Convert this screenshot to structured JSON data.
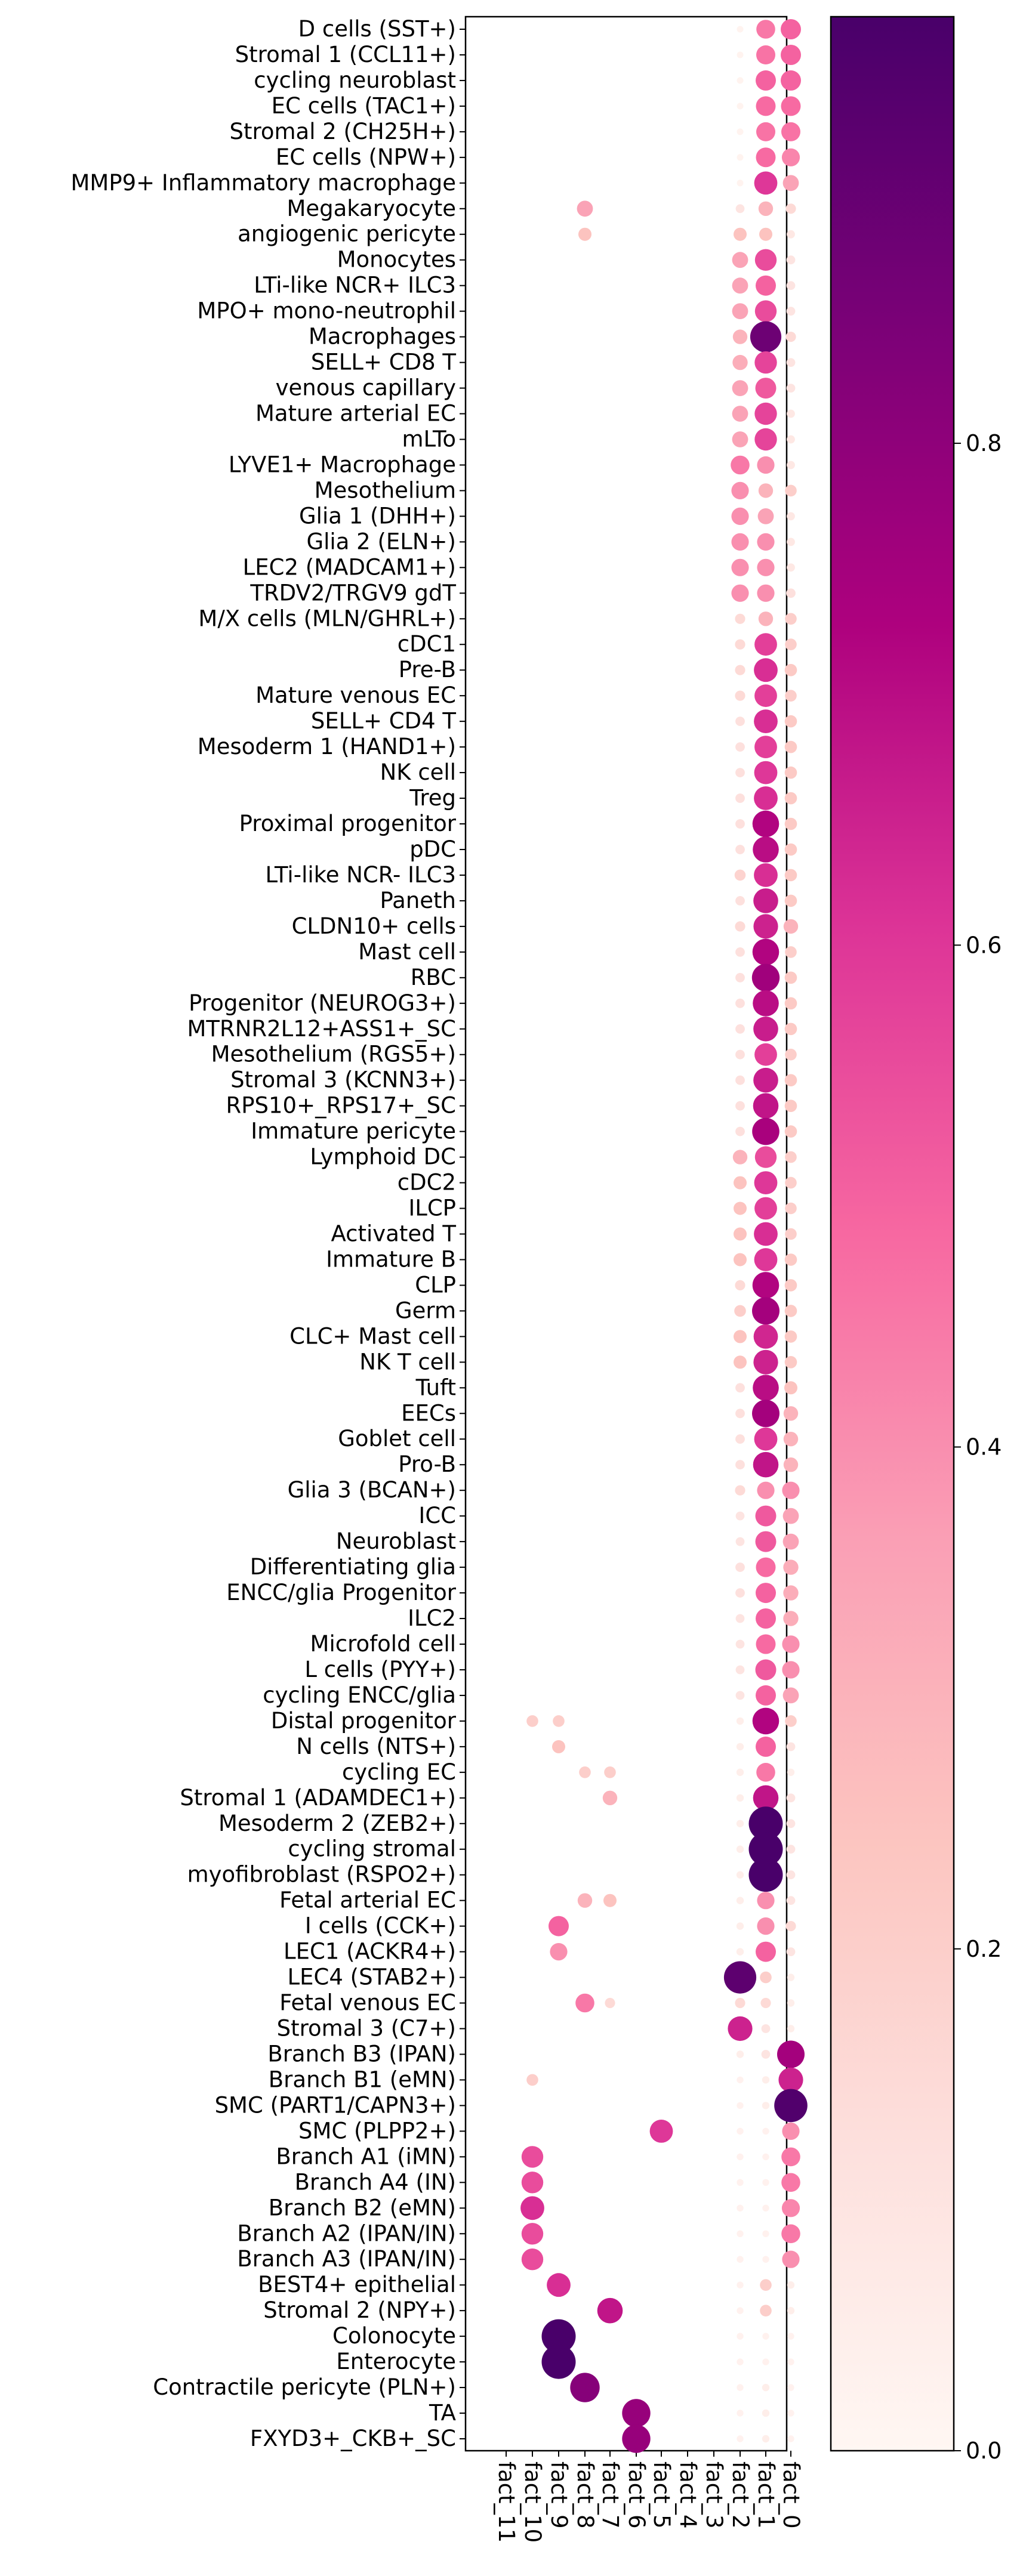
{
  "chart_data": {
    "type": "dotplot",
    "title": "",
    "xlabel": "",
    "ylabel": "",
    "columns": [
      "fact_11",
      "fact_10",
      "fact_9",
      "fact_8",
      "fact_7",
      "fact_6",
      "fact_5",
      "fact_4",
      "fact_3",
      "fact_2",
      "fact_1",
      "fact_0"
    ],
    "rows": [
      "D cells (SST+)",
      "Stromal 1 (CCL11+)",
      "cycling neuroblast",
      "EC cells (TAC1+)",
      "Stromal 2 (CH25H+)",
      "EC cells (NPW+)",
      "MMP9+ Inflammatory macrophage",
      "Megakaryocyte",
      "angiogenic pericyte",
      "Monocytes",
      "LTi-like NCR+ ILC3",
      "MPO+ mono-neutrophil",
      "Macrophages",
      "SELL+ CD8 T",
      "venous capillary",
      "Mature arterial EC",
      "mLTo",
      "LYVE1+ Macrophage",
      "Mesothelium",
      "Glia 1 (DHH+)",
      "Glia 2 (ELN+)",
      "LEC2 (MADCAM1+)",
      "TRDV2/TRGV9 gdT",
      "M/X cells (MLN/GHRL+)",
      "cDC1",
      "Pre-B",
      "Mature venous EC",
      "SELL+ CD4 T",
      "Mesoderm 1 (HAND1+)",
      "NK cell",
      "Treg",
      "Proximal progenitor",
      "pDC",
      "LTi-like NCR- ILC3",
      "Paneth",
      "CLDN10+ cells",
      "Mast cell",
      "RBC",
      "Progenitor (NEUROG3+)",
      "MTRNR2L12+ASS1+_SC",
      "Mesothelium (RGS5+)",
      "Stromal 3 (KCNN3+)",
      "RPS10+_RPS17+_SC",
      "Immature pericyte",
      "Lymphoid DC",
      "cDC2",
      "ILCP",
      "Activated T",
      "Immature B",
      "CLP",
      "Germ",
      "CLC+ Mast cell",
      "NK T cell",
      "Tuft",
      "EECs",
      "Goblet cell",
      "Pro-B",
      "Glia 3 (BCAN+)",
      "ICC",
      "Neuroblast",
      "Differentiating glia",
      "ENCC/glia Progenitor",
      "ILC2",
      "Microfold cell",
      "L cells (PYY+)",
      "cycling ENCC/glia",
      "Distal progenitor",
      "N cells (NTS+)",
      "cycling EC",
      "Stromal 1 (ADAMDEC1+)",
      "Mesoderm 2 (ZEB2+)",
      "cycling stromal",
      "myofibroblast (RSPO2+)",
      "Fetal arterial EC",
      "I cells (CCK+)",
      "LEC1 (ACKR4+)",
      "LEC4 (STAB2+)",
      "Fetal venous EC",
      "Stromal 3 (C7+)",
      "Branch B3 (IPAN)",
      "Branch B1 (eMN)",
      "SMC (PART1/CAPN3+)",
      "SMC (PLPP2+)",
      "Branch A1 (iMN)",
      "Branch A4 (IN)",
      "Branch B2 (eMN)",
      "Branch A2 (IPAN/IN)",
      "Branch A3 (IPAN/IN)",
      "BEST4+ epithelial",
      "Stromal 2 (NPY+)",
      "Colonocyte",
      "Enterocyte",
      "Contractile pericyte (PLN+)",
      "TA",
      "FXYD3+_CKB+_SC"
    ],
    "fact1_values": [
      0.45,
      0.46,
      0.5,
      0.48,
      0.46,
      0.48,
      0.6,
      0.3,
      0.25,
      0.55,
      0.5,
      0.55,
      0.88,
      0.57,
      0.52,
      0.57,
      0.57,
      0.4,
      0.3,
      0.35,
      0.4,
      0.4,
      0.4,
      0.3,
      0.58,
      0.62,
      0.58,
      0.62,
      0.58,
      0.6,
      0.62,
      0.72,
      0.7,
      0.62,
      0.66,
      0.65,
      0.72,
      0.76,
      0.7,
      0.66,
      0.58,
      0.66,
      0.68,
      0.74,
      0.55,
      0.6,
      0.58,
      0.62,
      0.6,
      0.72,
      0.75,
      0.64,
      0.65,
      0.7,
      0.75,
      0.6,
      0.68,
      0.4,
      0.52,
      0.52,
      0.48,
      0.5,
      0.5,
      0.48,
      0.52,
      0.5,
      0.72,
      0.5,
      0.45,
      0.68,
      0.98,
      0.98,
      0.98,
      0.4,
      0.4,
      0.5,
      0.2,
      0.15,
      0.1,
      0.1,
      0.05,
      0.05,
      0.03,
      0.03,
      0.03,
      0.03,
      0.03,
      0.03,
      0.2,
      0.2,
      0.03,
      0.03,
      0.05,
      0.05,
      0.05
    ],
    "fact0_values": [
      0.5,
      0.5,
      0.5,
      0.48,
      0.46,
      0.42,
      0.35,
      0.15,
      0.08,
      0.1,
      0.1,
      0.1,
      0.15,
      0.1,
      0.1,
      0.08,
      0.08,
      0.08,
      0.2,
      0.08,
      0.08,
      0.08,
      0.12,
      0.2,
      0.2,
      0.22,
      0.2,
      0.22,
      0.22,
      0.22,
      0.22,
      0.22,
      0.22,
      0.22,
      0.22,
      0.3,
      0.2,
      0.22,
      0.22,
      0.22,
      0.2,
      0.22,
      0.22,
      0.22,
      0.2,
      0.2,
      0.2,
      0.2,
      0.22,
      0.22,
      0.22,
      0.22,
      0.22,
      0.25,
      0.3,
      0.3,
      0.3,
      0.4,
      0.35,
      0.35,
      0.32,
      0.32,
      0.32,
      0.4,
      0.4,
      0.35,
      0.2,
      0.1,
      0.05,
      0.1,
      0.1,
      0.1,
      0.1,
      0.1,
      0.15,
      0.1,
      0.05,
      0.05,
      0.05,
      0.75,
      0.65,
      0.95,
      0.4,
      0.45,
      0.45,
      0.42,
      0.45,
      0.4,
      0.05,
      0.05,
      0.03,
      0.03,
      0.03,
      0.03,
      0.03
    ],
    "fact2_values": [
      0.02,
      0.02,
      0.02,
      0.02,
      0.02,
      0.02,
      0.02,
      0.1,
      0.25,
      0.35,
      0.35,
      0.35,
      0.3,
      0.32,
      0.35,
      0.35,
      0.35,
      0.45,
      0.4,
      0.4,
      0.4,
      0.4,
      0.4,
      0.15,
      0.15,
      0.15,
      0.15,
      0.12,
      0.12,
      0.12,
      0.12,
      0.12,
      0.12,
      0.18,
      0.12,
      0.15,
      0.12,
      0.12,
      0.12,
      0.12,
      0.12,
      0.12,
      0.12,
      0.12,
      0.3,
      0.25,
      0.25,
      0.25,
      0.25,
      0.15,
      0.2,
      0.25,
      0.25,
      0.12,
      0.12,
      0.12,
      0.12,
      0.15,
      0.1,
      0.1,
      0.12,
      0.12,
      0.1,
      0.1,
      0.1,
      0.1,
      0.05,
      0.05,
      0.05,
      0.05,
      0.05,
      0.05,
      0.05,
      0.05,
      0.05,
      0.05,
      0.92,
      0.15,
      0.65,
      0.05,
      0.03,
      0.03,
      0.03,
      0.03,
      0.03,
      0.03,
      0.03,
      0.03,
      0.03,
      0.03,
      0.03,
      0.03,
      0.03,
      0.03,
      0.03
    ],
    "extra_dots": [
      {
        "row": "Megakaryocyte",
        "column": "fact_8",
        "value": 0.35
      },
      {
        "row": "angiogenic pericyte",
        "column": "fact_8",
        "value": 0.25
      },
      {
        "row": "Distal progenitor",
        "column": "fact_10",
        "value": 0.2
      },
      {
        "row": "Distal progenitor",
        "column": "fact_9",
        "value": 0.2
      },
      {
        "row": "N cells (NTS+)",
        "column": "fact_9",
        "value": 0.25
      },
      {
        "row": "cycling EC",
        "column": "fact_8",
        "value": 0.2
      },
      {
        "row": "cycling EC",
        "column": "fact_7",
        "value": 0.2
      },
      {
        "row": "Stromal 1 (ADAMDEC1+)",
        "column": "fact_7",
        "value": 0.3
      },
      {
        "row": "Fetal arterial EC",
        "column": "fact_8",
        "value": 0.3
      },
      {
        "row": "Fetal arterial EC",
        "column": "fact_7",
        "value": 0.25
      },
      {
        "row": "I cells (CCK+)",
        "column": "fact_9",
        "value": 0.5
      },
      {
        "row": "LEC1 (ACKR4+)",
        "column": "fact_9",
        "value": 0.4
      },
      {
        "row": "Fetal venous EC",
        "column": "fact_8",
        "value": 0.45
      },
      {
        "row": "Fetal venous EC",
        "column": "fact_7",
        "value": 0.15
      },
      {
        "row": "Branch B1 (eMN)",
        "column": "fact_10",
        "value": 0.2
      },
      {
        "row": "SMC (PLPP2+)",
        "column": "fact_5",
        "value": 0.6
      },
      {
        "row": "Branch A1 (iMN)",
        "column": "fact_10",
        "value": 0.55
      },
      {
        "row": "Branch A4 (IN)",
        "column": "fact_10",
        "value": 0.55
      },
      {
        "row": "Branch B2 (eMN)",
        "column": "fact_10",
        "value": 0.62
      },
      {
        "row": "Branch A2 (IPAN/IN)",
        "column": "fact_10",
        "value": 0.55
      },
      {
        "row": "Branch A3 (IPAN/IN)",
        "column": "fact_10",
        "value": 0.55
      },
      {
        "row": "BEST4+ epithelial",
        "column": "fact_9",
        "value": 0.62
      },
      {
        "row": "Stromal 2 (NPY+)",
        "column": "fact_7",
        "value": 0.68
      },
      {
        "row": "Colonocyte",
        "column": "fact_9",
        "value": 0.98
      },
      {
        "row": "Enterocyte",
        "column": "fact_9",
        "value": 0.98
      },
      {
        "row": "Contractile pericyte (PLN+)",
        "column": "fact_8",
        "value": 0.82
      },
      {
        "row": "TA",
        "column": "fact_6",
        "value": 0.78
      },
      {
        "row": "FXYD3+_CKB+_SC",
        "column": "fact_6",
        "value": 0.78
      }
    ],
    "colorbar": {
      "ticks": [
        "0.0",
        "0.2",
        "0.4",
        "0.6",
        "0.8"
      ],
      "tick_values": [
        0,
        0.2,
        0.4,
        0.6,
        0.8
      ],
      "range": [
        0,
        0.97
      ],
      "colors": [
        "#fff7f3",
        "#fde0dd",
        "#fcc5c0",
        "#fa9fb5",
        "#f768a1",
        "#dd3497",
        "#ae017e",
        "#7a0177",
        "#49006a"
      ]
    }
  }
}
